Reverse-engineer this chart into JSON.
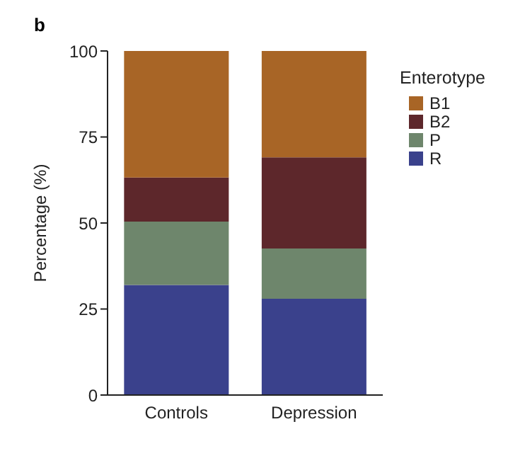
{
  "chart_data": {
    "type": "bar",
    "title": "b",
    "ylabel": "Percentage (%)",
    "legend_title": "Enterotype",
    "categories": [
      "Controls",
      "Depression"
    ],
    "stacked": true,
    "series": [
      {
        "name": "R",
        "color": "#3a418c",
        "values": [
          32,
          28
        ]
      },
      {
        "name": "P",
        "color": "#6e866c",
        "values": [
          18.4,
          14.6
        ]
      },
      {
        "name": "B2",
        "color": "#5d272b",
        "values": [
          12.8,
          26.5
        ]
      },
      {
        "name": "B1",
        "color": "#a86526",
        "values": [
          36.8,
          30.9
        ]
      }
    ],
    "ylim": [
      0,
      100
    ],
    "yticks": [
      0,
      25,
      50,
      75,
      100
    ],
    "grid": false,
    "legend": "right"
  }
}
